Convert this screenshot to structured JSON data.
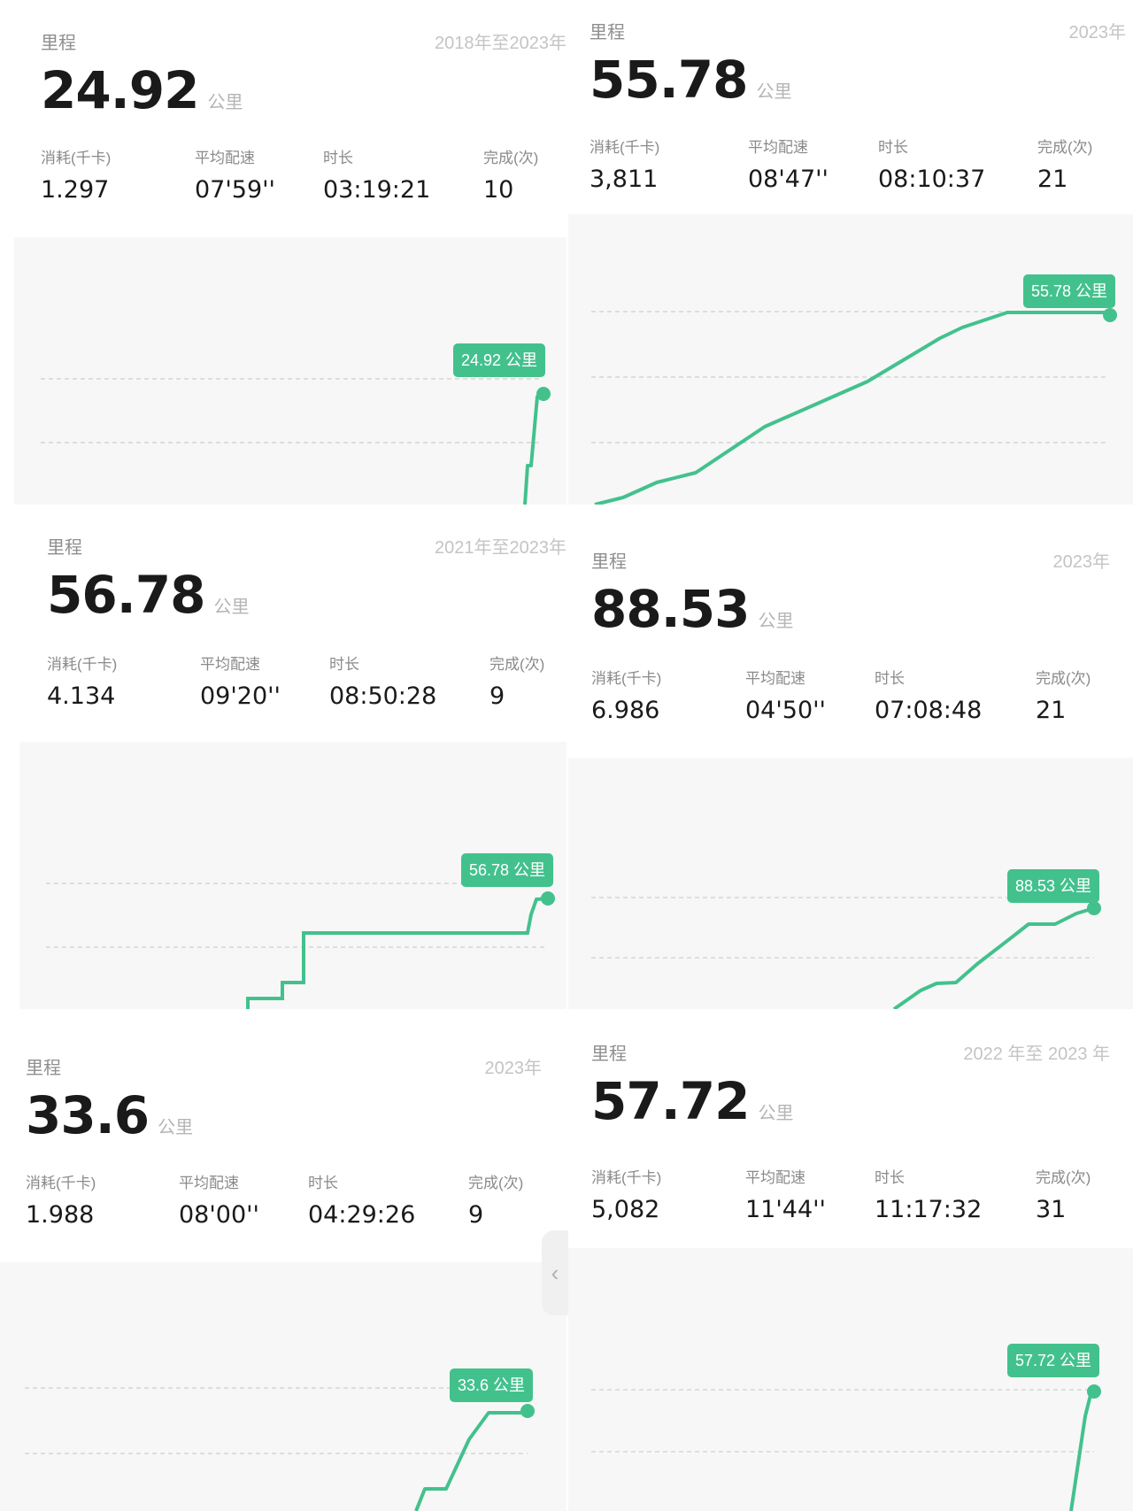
{
  "colors": {
    "accent": "#43c18d",
    "grid": "#d6d6d6"
  },
  "panels": [
    {
      "title": "里程",
      "period": "2018年至2023年",
      "distance": "24.92",
      "unit": "公里",
      "stats": [
        {
          "label": "消耗(千卡)",
          "value": "1.297"
        },
        {
          "label": "平均配速",
          "value": "07'59''"
        },
        {
          "label": "时长",
          "value": "03:19:21"
        },
        {
          "label": "完成(次)",
          "value": "10"
        }
      ],
      "tag": "24.92 公里"
    },
    {
      "title": "里程",
      "period": "2023年",
      "distance": "55.78",
      "unit": "公里",
      "stats": [
        {
          "label": "消耗(千卡)",
          "value": "3,811"
        },
        {
          "label": "平均配速",
          "value": "08'47''"
        },
        {
          "label": "时长",
          "value": "08:10:37"
        },
        {
          "label": "完成(次)",
          "value": "21"
        }
      ],
      "tag": "55.78 公里"
    },
    {
      "title": "里程",
      "period": "2021年至2023年",
      "distance": "56.78",
      "unit": "公里",
      "stats": [
        {
          "label": "消耗(千卡)",
          "value": "4.134"
        },
        {
          "label": "平均配速",
          "value": "09'20''"
        },
        {
          "label": "时长",
          "value": "08:50:28"
        },
        {
          "label": "完成(次)",
          "value": "9"
        }
      ],
      "tag": "56.78 公里"
    },
    {
      "title": "里程",
      "period": "2023年",
      "distance": "88.53",
      "unit": "公里",
      "stats": [
        {
          "label": "消耗(千卡)",
          "value": "6.986"
        },
        {
          "label": "平均配速",
          "value": "04'50''"
        },
        {
          "label": "时长",
          "value": "07:08:48"
        },
        {
          "label": "完成(次)",
          "value": "21"
        }
      ],
      "tag": "88.53 公里"
    },
    {
      "title": "里程",
      "period": "2023年",
      "distance": "33.6",
      "unit": "公里",
      "stats": [
        {
          "label": "消耗(千卡)",
          "value": "1.988"
        },
        {
          "label": "平均配速",
          "value": "08'00''"
        },
        {
          "label": "时长",
          "value": "04:29:26"
        },
        {
          "label": "完成(次)",
          "value": "9"
        }
      ],
      "tag": "33.6 公里"
    },
    {
      "title": "里程",
      "period": "2022 年至 2023 年",
      "distance": "57.72",
      "unit": "公里",
      "stats": [
        {
          "label": "消耗(千卡)",
          "value": "5,082"
        },
        {
          "label": "平均配速",
          "value": "11'44''"
        },
        {
          "label": "时长",
          "value": "11:17:32"
        },
        {
          "label": "完成(次)",
          "value": "31"
        }
      ],
      "tag": "57.72 公里"
    }
  ],
  "side_handle_icon": "chevron-left-icon",
  "side_handle_glyph": "‹"
}
